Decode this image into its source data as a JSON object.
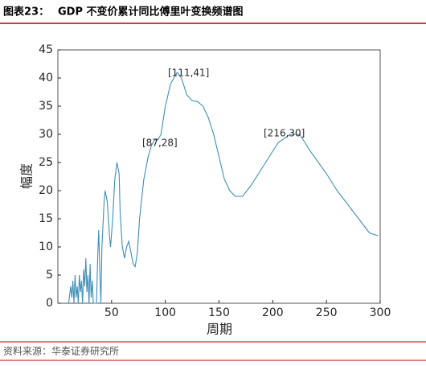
{
  "chart_data": {
    "type": "line",
    "title_prefix": "图表23：",
    "title": "GDP 不变价累计同比傅里叶变换频谱图",
    "x_label": "周期",
    "y_label": "幅度",
    "source": "资料来源：华泰证券研究所",
    "x": [
      10,
      12,
      13,
      14,
      15,
      16,
      17,
      18,
      19,
      20,
      21,
      22,
      23,
      24,
      25,
      26,
      27,
      28,
      29,
      30,
      31,
      32,
      33,
      35,
      36,
      37,
      38,
      39,
      40,
      41,
      43,
      44,
      46,
      48,
      49,
      51,
      53,
      55,
      57,
      58,
      60,
      62,
      64,
      66,
      68,
      70,
      72,
      74,
      76,
      80,
      84,
      87,
      90,
      93,
      96,
      100,
      105,
      111,
      115,
      120,
      125,
      130,
      135,
      140,
      145,
      150,
      155,
      160,
      165,
      172,
      180,
      190,
      200,
      205,
      216,
      225,
      235,
      250,
      260,
      270,
      280,
      290,
      298
    ],
    "series": [
      {
        "name": "幅度",
        "color": "#3e8fb8",
        "values": [
          0,
          3,
          1,
          4,
          0,
          5,
          1,
          3,
          0,
          5,
          2,
          4,
          0,
          6,
          3,
          8,
          2,
          5,
          0,
          7,
          1,
          4,
          0,
          0,
          0,
          8,
          13,
          6,
          0,
          10,
          18,
          20,
          18,
          12,
          10,
          15,
          22,
          25,
          23,
          16,
          10,
          8,
          10,
          11,
          9,
          7,
          6.5,
          9,
          15,
          22,
          26,
          28,
          29,
          29,
          30,
          35,
          39,
          41,
          40,
          37,
          36,
          35.8,
          35,
          33,
          30,
          26,
          22,
          20,
          19,
          19,
          21,
          24,
          27,
          28.5,
          30,
          30,
          27,
          23,
          20,
          17.5,
          15,
          12.5,
          12
        ]
      }
    ],
    "annotations": [
      "[111,41]",
      "[87,28]",
      "[216,30]"
    ],
    "xlim": [
      0,
      300
    ],
    "xticks": [
      50,
      100,
      150,
      200,
      250,
      300
    ],
    "ylim": [
      0,
      45
    ],
    "yticks": [
      0,
      5,
      10,
      15,
      20,
      25,
      30,
      35,
      40,
      45
    ]
  }
}
